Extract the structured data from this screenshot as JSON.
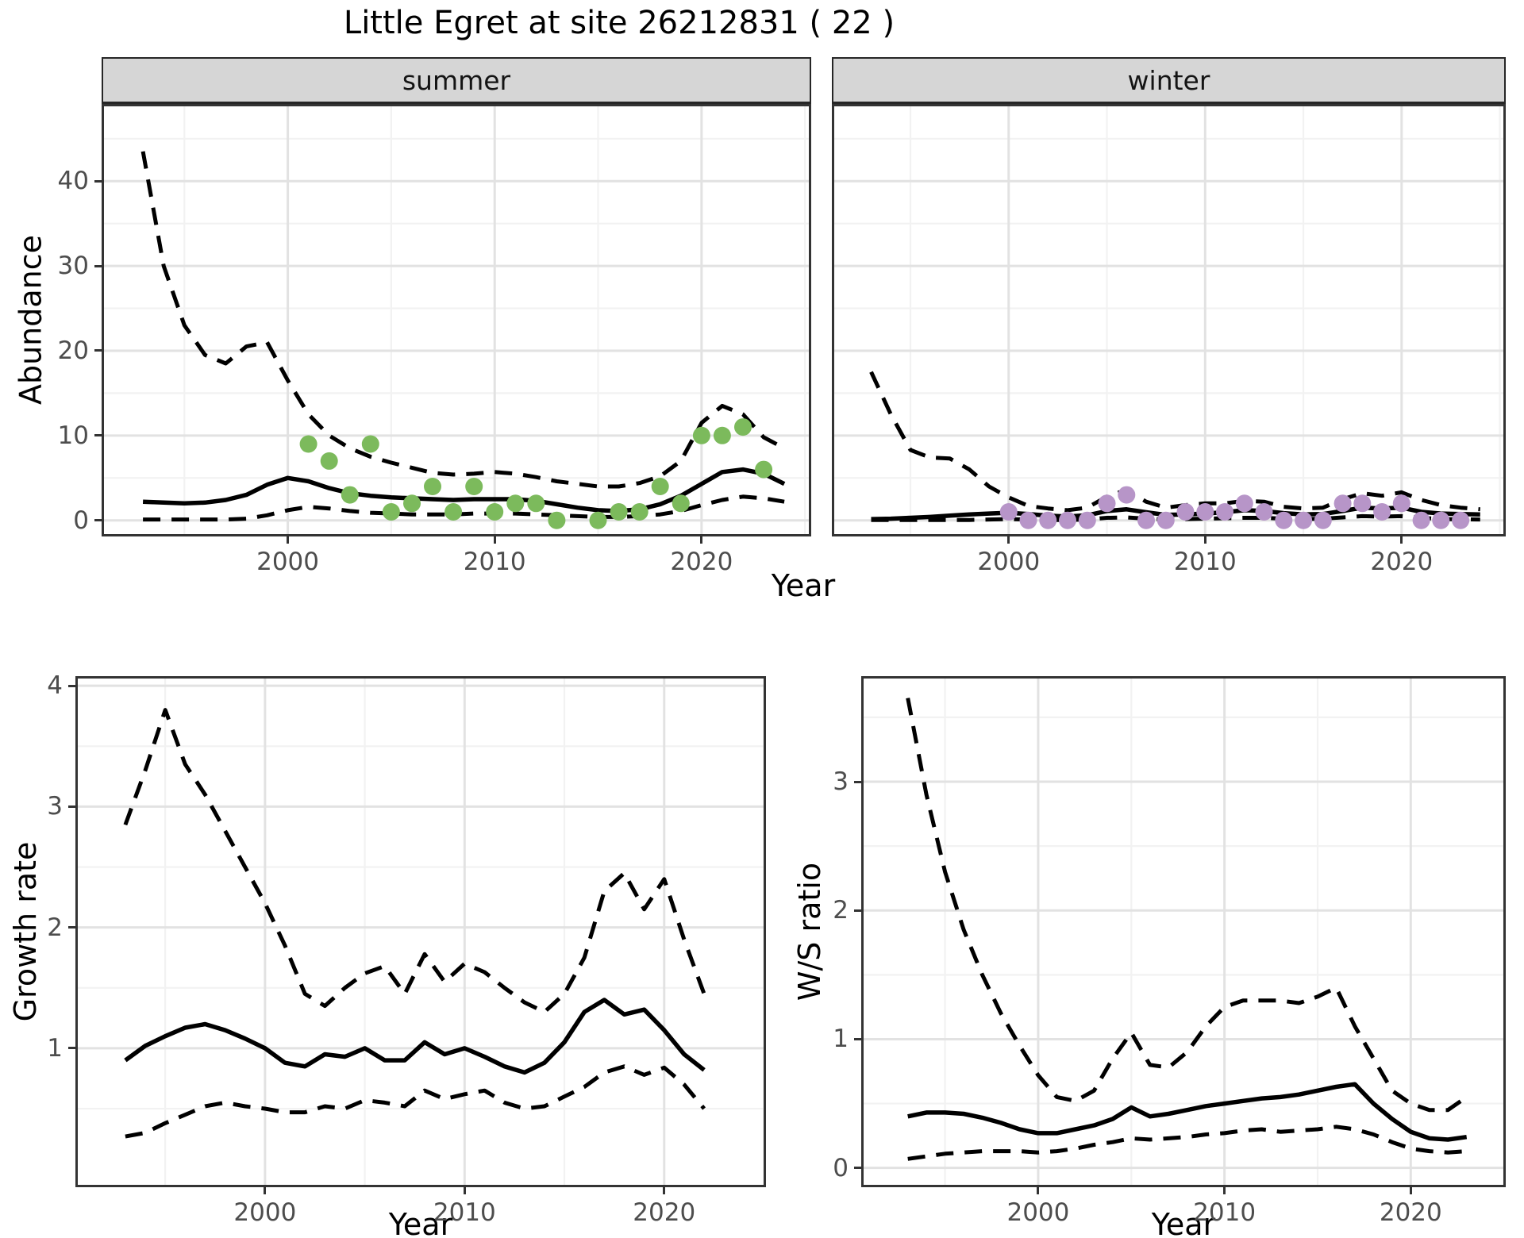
{
  "title": "Little Egret at site 26212831 ( 22 )",
  "axis": {
    "x_label": "Year"
  },
  "colors": {
    "summer_points": "#7CBA5C",
    "winter_points": "#B795C8",
    "line": "#000000",
    "grid_major": "#E2E2E2",
    "grid_minor": "#F2F2F2",
    "strip_bg": "#D6D6D6",
    "panel_border": "#333333",
    "tick_text": "#4D4D4D"
  },
  "chart_data": [
    {
      "id": "abundance-summer",
      "type": "line",
      "facet_label": "summer",
      "xlabel": "Year",
      "ylabel": "Abundance",
      "xlim": [
        1991.0,
        2025.3
      ],
      "ylim": [
        -1.9,
        49.1
      ],
      "xticks": [
        2000,
        2010,
        2020
      ],
      "yticks": [
        0,
        10,
        20,
        30,
        40
      ],
      "grid": true,
      "legend": "none",
      "series": [
        {
          "name": "lower-ci",
          "style": "dashed",
          "x": [
            1993,
            1994,
            1995,
            1996,
            1997,
            1998,
            1999,
            2000,
            2001,
            2002,
            2003,
            2004,
            2005,
            2006,
            2007,
            2008,
            2009,
            2010,
            2011,
            2012,
            2013,
            2014,
            2015,
            2016,
            2017,
            2018,
            2019,
            2020,
            2021,
            2022,
            2023,
            2024
          ],
          "y": [
            0.1,
            0.1,
            0.1,
            0.1,
            0.1,
            0.2,
            0.6,
            1.2,
            1.6,
            1.4,
            1.1,
            0.9,
            0.8,
            0.7,
            0.7,
            0.7,
            0.8,
            0.8,
            0.8,
            0.7,
            0.6,
            0.5,
            0.4,
            0.4,
            0.5,
            0.7,
            1.1,
            1.8,
            2.4,
            2.8,
            2.6,
            2.2
          ]
        },
        {
          "name": "upper-ci",
          "style": "dashed",
          "x": [
            1993,
            1994,
            1995,
            1996,
            1997,
            1998,
            1999,
            2000,
            2001,
            2002,
            2003,
            2004,
            2005,
            2006,
            2007,
            2008,
            2009,
            2010,
            2011,
            2012,
            2013,
            2014,
            2015,
            2016,
            2017,
            2018,
            2019,
            2020,
            2021,
            2022,
            2023,
            2024
          ],
          "y": [
            43.5,
            30.0,
            23.0,
            19.5,
            18.5,
            20.5,
            21.0,
            16.5,
            12.5,
            10.0,
            8.5,
            7.5,
            6.8,
            6.2,
            5.6,
            5.4,
            5.5,
            5.7,
            5.5,
            5.1,
            4.6,
            4.3,
            4.0,
            4.0,
            4.4,
            5.2,
            7.0,
            11.5,
            13.5,
            12.5,
            9.8,
            8.5
          ]
        },
        {
          "name": "fitted",
          "style": "solid",
          "x": [
            1993,
            1994,
            1995,
            1996,
            1997,
            1998,
            1999,
            2000,
            2001,
            2002,
            2003,
            2004,
            2005,
            2006,
            2007,
            2008,
            2009,
            2010,
            2011,
            2012,
            2013,
            2014,
            2015,
            2016,
            2017,
            2018,
            2019,
            2020,
            2021,
            2022,
            2023,
            2024
          ],
          "y": [
            2.2,
            2.1,
            2.0,
            2.1,
            2.4,
            3.0,
            4.2,
            5.0,
            4.6,
            3.8,
            3.2,
            2.9,
            2.7,
            2.6,
            2.5,
            2.4,
            2.5,
            2.5,
            2.5,
            2.3,
            1.9,
            1.5,
            1.2,
            1.1,
            1.3,
            1.9,
            2.9,
            4.3,
            5.7,
            6.0,
            5.5,
            4.3
          ]
        }
      ],
      "points": {
        "name": "observed-counts-summer",
        "color_key": "summer_points",
        "x": [
          2001,
          2002,
          2003,
          2004,
          2005,
          2006,
          2007,
          2008,
          2009,
          2010,
          2011,
          2012,
          2013,
          2015,
          2016,
          2017,
          2018,
          2019,
          2020,
          2021,
          2022,
          2023
        ],
        "y": [
          9,
          7,
          3,
          9,
          1,
          2,
          4,
          1,
          4,
          1,
          2,
          2,
          0,
          0,
          1,
          1,
          4,
          2,
          10,
          10,
          11,
          6
        ]
      }
    },
    {
      "id": "abundance-winter",
      "type": "line",
      "facet_label": "winter",
      "xlabel": "Year",
      "ylabel": "Abundance",
      "xlim": [
        1991.0,
        2025.3
      ],
      "ylim": [
        -1.9,
        49.1
      ],
      "xticks": [
        2000,
        2010,
        2020
      ],
      "yticks": [
        0,
        10,
        20,
        30,
        40
      ],
      "grid": true,
      "legend": "none",
      "series": [
        {
          "name": "lower-ci",
          "style": "dashed",
          "x": [
            1993,
            1994,
            1995,
            1996,
            1997,
            1998,
            1999,
            2000,
            2001,
            2002,
            2003,
            2004,
            2005,
            2006,
            2007,
            2008,
            2009,
            2010,
            2011,
            2012,
            2013,
            2014,
            2015,
            2016,
            2017,
            2018,
            2019,
            2020,
            2021,
            2022,
            2023,
            2024
          ],
          "y": [
            0.05,
            0.05,
            0.05,
            0.05,
            0.05,
            0.05,
            0.1,
            0.15,
            0.1,
            0.05,
            0.05,
            0.1,
            0.3,
            0.35,
            0.2,
            0.1,
            0.15,
            0.2,
            0.25,
            0.3,
            0.3,
            0.2,
            0.15,
            0.2,
            0.35,
            0.5,
            0.45,
            0.5,
            0.3,
            0.15,
            0.12,
            0.1
          ]
        },
        {
          "name": "upper-ci",
          "style": "dashed",
          "x": [
            1993,
            1994,
            1995,
            1996,
            1997,
            1998,
            1999,
            2000,
            2001,
            2002,
            2003,
            2004,
            2005,
            2006,
            2007,
            2008,
            2009,
            2010,
            2011,
            2012,
            2013,
            2014,
            2015,
            2016,
            2017,
            2018,
            2019,
            2020,
            2021,
            2022,
            2023,
            2024
          ],
          "y": [
            17.5,
            12.5,
            8.3,
            7.4,
            7.3,
            6.0,
            4.0,
            2.7,
            1.7,
            1.4,
            1.2,
            1.5,
            2.8,
            3.6,
            2.2,
            1.5,
            1.8,
            2.0,
            2.0,
            2.3,
            2.2,
            1.6,
            1.4,
            1.5,
            2.5,
            3.2,
            2.9,
            3.3,
            2.4,
            1.8,
            1.5,
            1.3
          ]
        },
        {
          "name": "fitted",
          "style": "solid",
          "x": [
            1993,
            1994,
            1995,
            1996,
            1997,
            1998,
            1999,
            2000,
            2001,
            2002,
            2003,
            2004,
            2005,
            2006,
            2007,
            2008,
            2009,
            2010,
            2011,
            2012,
            2013,
            2014,
            2015,
            2016,
            2017,
            2018,
            2019,
            2020,
            2021,
            2022,
            2023,
            2024
          ],
          "y": [
            0.15,
            0.2,
            0.3,
            0.4,
            0.55,
            0.7,
            0.8,
            0.9,
            0.75,
            0.55,
            0.45,
            0.6,
            1.1,
            1.3,
            0.95,
            0.65,
            0.7,
            0.8,
            0.95,
            1.2,
            1.1,
            0.85,
            0.7,
            0.75,
            1.1,
            1.5,
            1.4,
            1.5,
            1.0,
            0.8,
            0.75,
            0.7
          ]
        }
      ],
      "points": {
        "name": "observed-counts-winter",
        "color_key": "winter_points",
        "x": [
          2000,
          2001,
          2002,
          2003,
          2004,
          2005,
          2006,
          2007,
          2008,
          2009,
          2010,
          2011,
          2012,
          2013,
          2014,
          2015,
          2016,
          2017,
          2018,
          2019,
          2020,
          2021,
          2022,
          2023
        ],
        "y": [
          1,
          0,
          0,
          0,
          0,
          2,
          3,
          0,
          0,
          1,
          1,
          1,
          2,
          1,
          0,
          0,
          0,
          2,
          2,
          1,
          2,
          0,
          0,
          0
        ]
      }
    },
    {
      "id": "growth-rate",
      "type": "line",
      "facet_label": "",
      "xlabel": "Year",
      "ylabel": "Growth rate",
      "xlim": [
        1990.5,
        2025.1
      ],
      "ylim": [
        -0.15,
        4.08
      ],
      "xticks": [
        2000,
        2010,
        2020
      ],
      "yticks": [
        1,
        2,
        3,
        4
      ],
      "grid": true,
      "legend": "none",
      "series": [
        {
          "name": "lower-ci",
          "style": "dashed",
          "x": [
            1993,
            1994,
            1995,
            1996,
            1997,
            1998,
            1999,
            2000,
            2001,
            2002,
            2003,
            2004,
            2005,
            2006,
            2007,
            2008,
            2009,
            2010,
            2011,
            2012,
            2013,
            2014,
            2015,
            2016,
            2017,
            2018,
            2019,
            2020,
            2021,
            2022
          ],
          "y": [
            0.27,
            0.3,
            0.38,
            0.45,
            0.52,
            0.55,
            0.52,
            0.5,
            0.47,
            0.47,
            0.52,
            0.5,
            0.57,
            0.55,
            0.52,
            0.65,
            0.58,
            0.62,
            0.65,
            0.55,
            0.5,
            0.52,
            0.6,
            0.68,
            0.8,
            0.85,
            0.78,
            0.84,
            0.7,
            0.5
          ]
        },
        {
          "name": "upper-ci",
          "style": "dashed",
          "x": [
            1993,
            1994,
            1995,
            1996,
            1997,
            1998,
            1999,
            2000,
            2001,
            2002,
            2003,
            2004,
            2005,
            2006,
            2007,
            2008,
            2009,
            2010,
            2011,
            2012,
            2013,
            2014,
            2015,
            2016,
            2017,
            2018,
            2019,
            2020,
            2021,
            2022
          ],
          "y": [
            2.85,
            3.3,
            3.8,
            3.35,
            3.1,
            2.8,
            2.5,
            2.2,
            1.85,
            1.45,
            1.35,
            1.5,
            1.62,
            1.68,
            1.45,
            1.78,
            1.55,
            1.7,
            1.63,
            1.5,
            1.38,
            1.3,
            1.45,
            1.75,
            2.3,
            2.45,
            2.15,
            2.4,
            1.9,
            1.45
          ]
        },
        {
          "name": "fitted",
          "style": "solid",
          "x": [
            1993,
            1994,
            1995,
            1996,
            1997,
            1998,
            1999,
            2000,
            2001,
            2002,
            2003,
            2004,
            2005,
            2006,
            2007,
            2008,
            2009,
            2010,
            2011,
            2012,
            2013,
            2014,
            2015,
            2016,
            2017,
            2018,
            2019,
            2020,
            2021,
            2022
          ],
          "y": [
            0.9,
            1.02,
            1.1,
            1.17,
            1.2,
            1.15,
            1.08,
            1.0,
            0.88,
            0.85,
            0.95,
            0.93,
            1.0,
            0.9,
            0.9,
            1.05,
            0.95,
            1.0,
            0.93,
            0.85,
            0.8,
            0.88,
            1.05,
            1.3,
            1.4,
            1.28,
            1.32,
            1.15,
            0.95,
            0.82
          ]
        }
      ],
      "points": null
    },
    {
      "id": "ws-ratio",
      "type": "line",
      "facet_label": "",
      "xlabel": "Year",
      "ylabel": "W/S ratio",
      "xlim": [
        1990.5,
        2025.1
      ],
      "ylim": [
        -0.15,
        3.82
      ],
      "xticks": [
        2000,
        2010,
        2020
      ],
      "yticks": [
        0,
        1,
        2,
        3
      ],
      "grid": true,
      "legend": "none",
      "series": [
        {
          "name": "lower-ci",
          "style": "dashed",
          "x": [
            1993,
            1994,
            1995,
            1996,
            1997,
            1998,
            1999,
            2000,
            2001,
            2002,
            2003,
            2004,
            2005,
            2006,
            2007,
            2008,
            2009,
            2010,
            2011,
            2012,
            2013,
            2014,
            2015,
            2016,
            2017,
            2018,
            2019,
            2020,
            2021,
            2022,
            2023
          ],
          "y": [
            0.07,
            0.09,
            0.11,
            0.12,
            0.13,
            0.13,
            0.13,
            0.12,
            0.13,
            0.15,
            0.18,
            0.2,
            0.23,
            0.22,
            0.23,
            0.24,
            0.26,
            0.27,
            0.29,
            0.3,
            0.28,
            0.29,
            0.3,
            0.32,
            0.3,
            0.26,
            0.2,
            0.15,
            0.13,
            0.12,
            0.13
          ]
        },
        {
          "name": "upper-ci",
          "style": "dashed",
          "x": [
            1993,
            1994,
            1995,
            1996,
            1997,
            1998,
            1999,
            2000,
            2001,
            2002,
            2003,
            2004,
            2005,
            2006,
            2007,
            2008,
            2009,
            2010,
            2011,
            2012,
            2013,
            2014,
            2015,
            2016,
            2017,
            2018,
            2019,
            2020,
            2021,
            2022,
            2023
          ],
          "y": [
            3.65,
            2.9,
            2.3,
            1.85,
            1.5,
            1.2,
            0.95,
            0.72,
            0.55,
            0.52,
            0.6,
            0.85,
            1.05,
            0.8,
            0.78,
            0.9,
            1.1,
            1.25,
            1.3,
            1.3,
            1.3,
            1.28,
            1.33,
            1.4,
            1.1,
            0.85,
            0.6,
            0.5,
            0.45,
            0.45,
            0.55
          ]
        },
        {
          "name": "fitted",
          "style": "solid",
          "x": [
            1993,
            1994,
            1995,
            1996,
            1997,
            1998,
            1999,
            2000,
            2001,
            2002,
            2003,
            2004,
            2005,
            2006,
            2007,
            2008,
            2009,
            2010,
            2011,
            2012,
            2013,
            2014,
            2015,
            2016,
            2017,
            2018,
            2019,
            2020,
            2021,
            2022,
            2023
          ],
          "y": [
            0.4,
            0.43,
            0.43,
            0.42,
            0.39,
            0.35,
            0.3,
            0.27,
            0.27,
            0.3,
            0.33,
            0.38,
            0.47,
            0.4,
            0.42,
            0.45,
            0.48,
            0.5,
            0.52,
            0.54,
            0.55,
            0.57,
            0.6,
            0.63,
            0.65,
            0.5,
            0.38,
            0.28,
            0.23,
            0.22,
            0.24
          ]
        }
      ],
      "points": null
    }
  ]
}
